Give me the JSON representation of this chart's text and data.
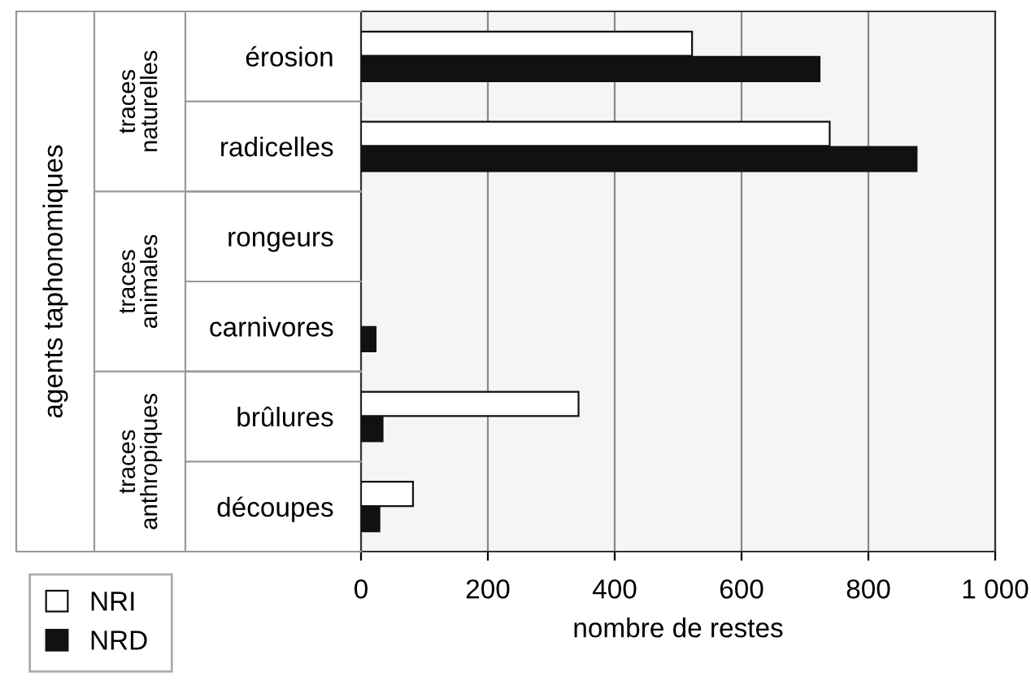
{
  "chart_data": {
    "type": "bar",
    "orientation": "horizontal",
    "xlabel": "nombre de restes",
    "categories": [
      "érosion",
      "radicelles",
      "rongeurs",
      "carnivores",
      "brûlures",
      "découpes"
    ],
    "annotations": [
      "traces\nnaturelles",
      "traces\nanimales",
      "traces\nanthropiques",
      "agents taphonomiques"
    ],
    "series": [
      {
        "name": "NRI",
        "color": "#ffffff",
        "values": [
          522,
          739,
          0,
          0,
          343,
          82
        ]
      },
      {
        "name": "NRD",
        "color": "#111111",
        "values": [
          723,
          876,
          0,
          23,
          34,
          29
        ]
      }
    ],
    "xlim": [
      0,
      1000
    ],
    "xticks": [
      0,
      200,
      400,
      600,
      {
        "value": 800,
        "label": "800"
      },
      {
        "value": 1000,
        "label": "1 000"
      }
    ],
    "grid": "x",
    "legend": "bottom left"
  }
}
